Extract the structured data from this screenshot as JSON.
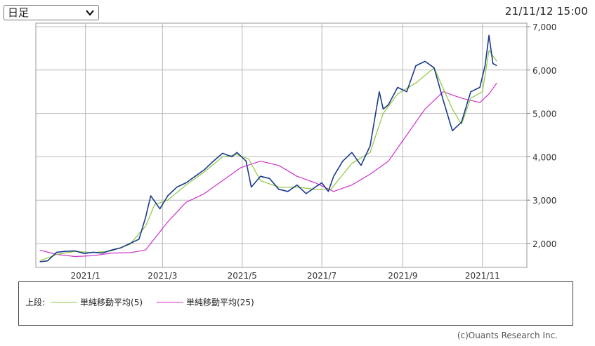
{
  "controls": {
    "period_select": {
      "value": "日足"
    },
    "datetime": "21/11/12 15:00"
  },
  "legend": {
    "section_label": "上段:",
    "items": [
      {
        "label": "単純移動平均(5)",
        "color": "#8cc63f"
      },
      {
        "label": "単純移動平均(25)",
        "color": "#cc33cc"
      }
    ]
  },
  "copyright": "(c)Ouants Research Inc.",
  "chart_data": {
    "type": "line",
    "x_ticks": [
      "2021/1",
      "2021/3",
      "2021/5",
      "2021/7",
      "2021/9",
      "2021/11"
    ],
    "y_ticks": [
      "7,000",
      "6,000",
      "5,000",
      "4,000",
      "3,000",
      "2,000"
    ],
    "y_tick_values": [
      7000,
      6000,
      5000,
      4000,
      3000,
      2000
    ],
    "ylim": [
      1450,
      7080
    ],
    "x_range": [
      "2020-11-24",
      "2021-12-05"
    ],
    "grid": true,
    "colors": {
      "price": "#1a3a8c",
      "ma5": "#8cc63f",
      "ma25": "#cc33cc"
    },
    "series": [
      {
        "name": "",
        "key": "price",
        "x": [
          "2020-11-27",
          "2020-12-03",
          "2020-12-10",
          "2020-12-17",
          "2020-12-24",
          "2020-12-31",
          "2021-01-07",
          "2021-01-14",
          "2021-01-21",
          "2021-01-28",
          "2021-02-04",
          "2021-02-11",
          "2021-02-16",
          "2021-02-20",
          "2021-02-27",
          "2021-03-05",
          "2021-03-12",
          "2021-03-19",
          "2021-03-26",
          "2021-04-02",
          "2021-04-09",
          "2021-04-16",
          "2021-04-23",
          "2021-04-27",
          "2021-05-04",
          "2021-05-08",
          "2021-05-15",
          "2021-05-22",
          "2021-05-29",
          "2021-06-05",
          "2021-06-12",
          "2021-06-19",
          "2021-06-26",
          "2021-07-01",
          "2021-07-06",
          "2021-07-10",
          "2021-07-17",
          "2021-07-24",
          "2021-07-31",
          "2021-08-07",
          "2021-08-14",
          "2021-08-17",
          "2021-08-21",
          "2021-08-28",
          "2021-09-04",
          "2021-09-11",
          "2021-09-18",
          "2021-09-25",
          "2021-10-02",
          "2021-10-09",
          "2021-10-16",
          "2021-10-23",
          "2021-10-30",
          "2021-11-03",
          "2021-11-06",
          "2021-11-09",
          "2021-11-12"
        ],
        "y": [
          1580,
          1600,
          1800,
          1820,
          1830,
          1770,
          1800,
          1780,
          1850,
          1900,
          2000,
          2100,
          2600,
          3100,
          2800,
          3100,
          3300,
          3400,
          3550,
          3700,
          3900,
          4080,
          4000,
          4100,
          3900,
          3300,
          3550,
          3500,
          3250,
          3200,
          3350,
          3150,
          3300,
          3400,
          3200,
          3550,
          3900,
          4100,
          3800,
          4250,
          5500,
          5100,
          5200,
          5600,
          5500,
          6100,
          6200,
          6050,
          5300,
          4600,
          4800,
          5500,
          5600,
          6100,
          6800,
          6150,
          6100
        ]
      },
      {
        "name": "単純移動平均(5)",
        "key": "ma5",
        "x": [
          "2020-11-27",
          "2020-12-10",
          "2020-12-24",
          "2021-01-07",
          "2021-01-21",
          "2021-02-04",
          "2021-02-16",
          "2021-02-23",
          "2021-03-05",
          "2021-03-19",
          "2021-04-02",
          "2021-04-16",
          "2021-04-27",
          "2021-05-06",
          "2021-05-15",
          "2021-05-29",
          "2021-06-12",
          "2021-06-26",
          "2021-07-08",
          "2021-07-24",
          "2021-08-07",
          "2021-08-17",
          "2021-08-28",
          "2021-09-11",
          "2021-09-25",
          "2021-10-09",
          "2021-10-16",
          "2021-10-23",
          "2021-11-01",
          "2021-11-06",
          "2021-11-12"
        ],
        "y": [
          1600,
          1750,
          1820,
          1790,
          1830,
          1980,
          2400,
          2900,
          3000,
          3350,
          3650,
          4000,
          4050,
          3950,
          3450,
          3300,
          3300,
          3250,
          3250,
          3850,
          4100,
          5000,
          5450,
          5700,
          6050,
          5100,
          4750,
          5350,
          5500,
          6450,
          6200
        ]
      },
      {
        "name": "単純移動平均(25)",
        "key": "ma25",
        "x": [
          "2020-11-27",
          "2020-12-10",
          "2020-12-24",
          "2021-01-07",
          "2021-01-21",
          "2021-02-04",
          "2021-02-16",
          "2021-03-05",
          "2021-03-19",
          "2021-04-02",
          "2021-04-16",
          "2021-04-30",
          "2021-05-15",
          "2021-05-29",
          "2021-06-12",
          "2021-06-26",
          "2021-07-10",
          "2021-07-24",
          "2021-08-07",
          "2021-08-21",
          "2021-09-04",
          "2021-09-18",
          "2021-10-02",
          "2021-10-16",
          "2021-10-30",
          "2021-11-06",
          "2021-11-12"
        ],
        "y": [
          1850,
          1750,
          1700,
          1720,
          1780,
          1790,
          1850,
          2500,
          2950,
          3150,
          3450,
          3750,
          3900,
          3800,
          3550,
          3400,
          3200,
          3350,
          3600,
          3900,
          4500,
          5100,
          5500,
          5350,
          5250,
          5450,
          5700
        ]
      }
    ]
  }
}
